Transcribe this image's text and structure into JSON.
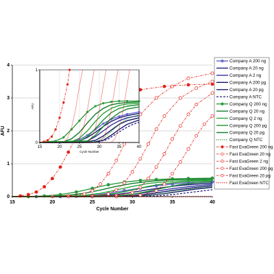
{
  "chart_data": [
    {
      "type": "line",
      "xlabel": "Cycle Number",
      "ylabel": "AFU",
      "xlim": [
        15,
        40
      ],
      "ylim": [
        0,
        4
      ],
      "x_ticks": [
        15,
        20,
        25,
        30,
        35,
        40
      ],
      "y_ticks": [
        0,
        1,
        2,
        3,
        4
      ],
      "grid": "horizontal",
      "legend": "right",
      "series": [
        {
          "name": "Company A 200 ng",
          "color": "#6a6acf",
          "style": "solid-marker",
          "x": [
            15,
            18,
            21,
            23,
            25,
            27,
            29,
            31,
            33,
            35,
            37,
            40
          ],
          "y": [
            0.0,
            0.0,
            0.0,
            0.01,
            0.04,
            0.1,
            0.18,
            0.26,
            0.33,
            0.38,
            0.42,
            0.45
          ]
        },
        {
          "name": "Company A 20 ng",
          "color": "#1c1c7a",
          "style": "solid",
          "x": [
            15,
            18,
            21,
            24,
            26,
            28,
            30,
            32,
            34,
            36,
            38,
            40
          ],
          "y": [
            0.0,
            0.0,
            0.0,
            0.0,
            0.02,
            0.06,
            0.13,
            0.21,
            0.28,
            0.34,
            0.38,
            0.41
          ]
        },
        {
          "name": "Company A 2 ng",
          "color": "#2f2f9e",
          "style": "solid",
          "x": [
            15,
            20,
            24,
            27,
            29,
            31,
            33,
            35,
            37,
            39,
            40
          ],
          "y": [
            0.0,
            0.0,
            0.0,
            0.01,
            0.04,
            0.1,
            0.17,
            0.24,
            0.3,
            0.35,
            0.37
          ]
        },
        {
          "name": "Company A 200 pg",
          "color": "#101060",
          "style": "solid",
          "x": [
            15,
            20,
            25,
            28,
            30,
            32,
            34,
            36,
            38,
            40
          ],
          "y": [
            0.0,
            0.0,
            0.0,
            0.01,
            0.03,
            0.08,
            0.15,
            0.22,
            0.28,
            0.33
          ]
        },
        {
          "name": "Company A 20 pg",
          "color": "#16166e",
          "style": "solid",
          "x": [
            15,
            20,
            25,
            30,
            32,
            34,
            36,
            38,
            40
          ],
          "y": [
            0.0,
            0.0,
            0.0,
            0.01,
            0.04,
            0.09,
            0.16,
            0.23,
            0.28
          ]
        },
        {
          "name": "Company A NTC",
          "color": "#1c1c7a",
          "style": "dashed",
          "x": [
            15,
            20,
            25,
            30,
            33,
            35,
            37,
            39,
            40
          ],
          "y": [
            0.0,
            0.0,
            0.0,
            0.0,
            0.02,
            0.06,
            0.12,
            0.18,
            0.21
          ]
        },
        {
          "name": "Company Q 200 ng",
          "color": "#2e9a3e",
          "style": "solid-marker",
          "x": [
            15,
            17,
            19,
            21,
            23,
            25,
            27,
            29,
            31,
            33,
            35,
            37,
            40
          ],
          "y": [
            0.0,
            0.0,
            0.02,
            0.06,
            0.14,
            0.25,
            0.36,
            0.44,
            0.49,
            0.52,
            0.54,
            0.55,
            0.56
          ]
        },
        {
          "name": "Company Q 20 ng",
          "color": "#0f7a2a",
          "style": "solid",
          "x": [
            15,
            18,
            20,
            22,
            24,
            26,
            28,
            30,
            32,
            34,
            36,
            38,
            40
          ],
          "y": [
            0.0,
            0.0,
            0.01,
            0.04,
            0.1,
            0.2,
            0.31,
            0.4,
            0.46,
            0.5,
            0.52,
            0.53,
            0.54
          ]
        },
        {
          "name": "Company Q 2 ng",
          "color": "#2aa53a",
          "style": "solid",
          "x": [
            15,
            20,
            22,
            24,
            26,
            28,
            30,
            32,
            34,
            36,
            38,
            40
          ],
          "y": [
            0.0,
            0.0,
            0.01,
            0.04,
            0.1,
            0.2,
            0.31,
            0.4,
            0.45,
            0.48,
            0.5,
            0.51
          ]
        },
        {
          "name": "Company Q 200 pg",
          "color": "#1b8f2f",
          "style": "solid",
          "x": [
            15,
            20,
            24,
            26,
            28,
            30,
            32,
            34,
            36,
            38,
            40
          ],
          "y": [
            0.0,
            0.0,
            0.01,
            0.04,
            0.1,
            0.2,
            0.31,
            0.39,
            0.44,
            0.47,
            0.48
          ]
        },
        {
          "name": "Company Q 20 pg",
          "color": "#17852c",
          "style": "solid",
          "x": [
            15,
            20,
            25,
            28,
            30,
            32,
            34,
            36,
            38,
            40
          ],
          "y": [
            0.0,
            0.0,
            0.0,
            0.02,
            0.07,
            0.16,
            0.27,
            0.36,
            0.42,
            0.45
          ]
        },
        {
          "name": "Company Q NTC",
          "color": "#2a9a38",
          "style": "dotted",
          "x": [
            15,
            20,
            25,
            30,
            32,
            34,
            36,
            38,
            40
          ],
          "y": [
            0.0,
            0.0,
            0.0,
            0.01,
            0.04,
            0.1,
            0.18,
            0.26,
            0.31
          ]
        },
        {
          "name": "Fast EvaGreen 200 ng",
          "color": "#e2231a",
          "style": "dashdot-marker",
          "x": [
            15,
            16,
            17,
            18,
            19,
            20,
            21,
            22,
            23,
            25,
            28,
            31,
            34,
            37,
            40
          ],
          "y": [
            0.0,
            0.02,
            0.06,
            0.14,
            0.3,
            0.55,
            0.9,
            1.35,
            1.85,
            2.55,
            3.05,
            3.25,
            3.35,
            3.4,
            3.42
          ]
        },
        {
          "name": "Fast EvaGreen 20 ng",
          "color": "#e2231a",
          "style": "dashdot-open",
          "x": [
            15,
            20,
            22,
            24,
            25,
            26,
            27,
            28,
            29,
            30,
            31,
            33,
            35,
            37,
            40
          ],
          "y": [
            0.0,
            0.0,
            0.02,
            0.08,
            0.18,
            0.38,
            0.7,
            1.1,
            1.6,
            2.1,
            2.5,
            3.0,
            3.35,
            3.6,
            3.75
          ]
        },
        {
          "name": "Fast EvaGreen 2 ng",
          "color": "#e2231a",
          "style": "dashdot-open",
          "x": [
            15,
            22,
            25,
            27,
            28,
            29,
            30,
            31,
            32,
            33,
            34,
            36,
            38,
            40
          ],
          "y": [
            0.0,
            0.0,
            0.02,
            0.08,
            0.2,
            0.42,
            0.75,
            1.15,
            1.6,
            2.05,
            2.45,
            3.0,
            3.3,
            3.5
          ]
        },
        {
          "name": "Fast EvaGreen 200 pg",
          "color": "#e2231a",
          "style": "dashdot-open",
          "x": [
            15,
            25,
            28,
            30,
            31,
            32,
            33,
            34,
            35,
            36,
            37,
            38,
            40
          ],
          "y": [
            0.0,
            0.0,
            0.03,
            0.12,
            0.28,
            0.55,
            0.9,
            1.3,
            1.75,
            2.15,
            2.5,
            2.8,
            3.15
          ]
        },
        {
          "name": "Fast EvaGreen 20 pg",
          "color": "#e2231a",
          "style": "dashdot-open",
          "x": [
            15,
            28,
            31,
            33,
            34,
            35,
            36,
            37,
            38,
            39,
            40
          ],
          "y": [
            0.0,
            0.0,
            0.04,
            0.18,
            0.38,
            0.7,
            1.05,
            1.45,
            1.85,
            2.2,
            2.45
          ]
        },
        {
          "name": "Fast EvaGreen NTC",
          "color": "#e2231a",
          "style": "dotted",
          "x": [
            15,
            40
          ],
          "y": [
            0.0,
            0.0
          ]
        }
      ]
    },
    {
      "type": "line",
      "role": "inset",
      "xlabel": "Cycle Number",
      "ylabel": "AFU",
      "xlim": [
        15,
        40
      ],
      "ylim": [
        0,
        1
      ],
      "x_ticks": [
        15,
        20,
        25,
        30,
        35,
        40
      ],
      "y_ticks": [
        0,
        1
      ],
      "series": [
        {
          "name": "Company A 200 ng",
          "color": "#6a6acf",
          "style": "solid-marker",
          "x": [
            15,
            20,
            23,
            25,
            27,
            29,
            31,
            33,
            35,
            37,
            40
          ],
          "y": [
            0.0,
            0.0,
            0.01,
            0.04,
            0.1,
            0.18,
            0.26,
            0.32,
            0.36,
            0.39,
            0.42
          ]
        },
        {
          "name": "Company A 20 ng",
          "color": "#1c1c7a",
          "style": "solid",
          "x": [
            15,
            22,
            25,
            27,
            29,
            31,
            33,
            35,
            37,
            40
          ],
          "y": [
            0.0,
            0.0,
            0.02,
            0.07,
            0.14,
            0.22,
            0.29,
            0.34,
            0.37,
            0.4
          ]
        },
        {
          "name": "Company A 2 ng",
          "color": "#2f2f9e",
          "style": "solid",
          "x": [
            15,
            24,
            27,
            29,
            31,
            33,
            35,
            37,
            40
          ],
          "y": [
            0.0,
            0.0,
            0.02,
            0.08,
            0.16,
            0.24,
            0.3,
            0.34,
            0.37
          ]
        },
        {
          "name": "Company A 200 pg",
          "color": "#101060",
          "style": "solid",
          "x": [
            15,
            26,
            29,
            31,
            33,
            35,
            37,
            40
          ],
          "y": [
            0.0,
            0.0,
            0.03,
            0.09,
            0.17,
            0.25,
            0.3,
            0.34
          ]
        },
        {
          "name": "Company A 20 pg",
          "color": "#16166e",
          "style": "solid",
          "x": [
            15,
            28,
            31,
            33,
            35,
            37,
            40
          ],
          "y": [
            0.0,
            0.0,
            0.03,
            0.1,
            0.18,
            0.25,
            0.31
          ]
        },
        {
          "name": "Company A NTC",
          "color": "#1c1c7a",
          "style": "dashed",
          "x": [
            15,
            29,
            32,
            34,
            36,
            38,
            40
          ],
          "y": [
            0.0,
            0.0,
            0.04,
            0.11,
            0.18,
            0.24,
            0.28
          ]
        },
        {
          "name": "Company Q 200 ng",
          "color": "#2e9a3e",
          "style": "solid-marker",
          "x": [
            15,
            19,
            21,
            23,
            25,
            27,
            29,
            31,
            33,
            35,
            37,
            40
          ],
          "y": [
            0.0,
            0.02,
            0.07,
            0.18,
            0.3,
            0.42,
            0.5,
            0.54,
            0.56,
            0.57,
            0.57,
            0.57
          ]
        },
        {
          "name": "Company Q 20 ng",
          "color": "#0f7a2a",
          "style": "solid",
          "x": [
            15,
            21,
            23,
            25,
            27,
            29,
            31,
            33,
            35,
            37,
            40
          ],
          "y": [
            0.0,
            0.01,
            0.05,
            0.14,
            0.27,
            0.39,
            0.47,
            0.52,
            0.54,
            0.55,
            0.56
          ]
        },
        {
          "name": "Company Q 2 ng",
          "color": "#2aa53a",
          "style": "solid",
          "x": [
            15,
            23,
            25,
            27,
            29,
            31,
            33,
            35,
            37,
            40
          ],
          "y": [
            0.0,
            0.01,
            0.06,
            0.16,
            0.29,
            0.4,
            0.47,
            0.51,
            0.53,
            0.54
          ]
        },
        {
          "name": "Company Q 200 pg",
          "color": "#1b8f2f",
          "style": "solid",
          "x": [
            15,
            25,
            27,
            29,
            31,
            33,
            35,
            37,
            40
          ],
          "y": [
            0.0,
            0.02,
            0.08,
            0.19,
            0.31,
            0.41,
            0.47,
            0.5,
            0.52
          ]
        },
        {
          "name": "Company Q 20 pg",
          "color": "#17852c",
          "style": "solid",
          "x": [
            15,
            27,
            29,
            31,
            33,
            35,
            37,
            40
          ],
          "y": [
            0.0,
            0.02,
            0.1,
            0.22,
            0.33,
            0.41,
            0.46,
            0.49
          ]
        },
        {
          "name": "Company Q NTC",
          "color": "#2a9a38",
          "style": "dotted",
          "x": [
            15,
            29,
            31,
            33,
            35,
            37,
            40
          ],
          "y": [
            0.0,
            0.01,
            0.06,
            0.15,
            0.25,
            0.33,
            0.38
          ]
        },
        {
          "name": "Fast EvaGreen 200 ng",
          "color": "#e2231a",
          "style": "dashdot-marker",
          "x": [
            15,
            16,
            17,
            18,
            19,
            20,
            21,
            22,
            22.5
          ],
          "y": [
            0.0,
            0.01,
            0.03,
            0.08,
            0.18,
            0.34,
            0.55,
            0.8,
            1.0
          ]
        },
        {
          "name": "Fast EvaGreen 20 ng",
          "color": "#e2231a",
          "style": "light",
          "x": [
            15,
            21,
            22,
            23,
            24,
            25,
            25.8
          ],
          "y": [
            0.0,
            0.0,
            0.06,
            0.2,
            0.45,
            0.78,
            1.0
          ]
        },
        {
          "name": "Fast EvaGreen 2 ng",
          "color": "#e2231a",
          "style": "light",
          "x": [
            15,
            24,
            25,
            26,
            27,
            28,
            28.7
          ],
          "y": [
            0.0,
            0.0,
            0.06,
            0.2,
            0.45,
            0.78,
            1.0
          ]
        },
        {
          "name": "Fast EvaGreen 200 pg",
          "color": "#e2231a",
          "style": "light",
          "x": [
            15,
            27,
            28,
            29,
            30,
            31,
            31.7
          ],
          "y": [
            0.0,
            0.0,
            0.06,
            0.2,
            0.45,
            0.78,
            1.0
          ]
        },
        {
          "name": "Fast EvaGreen 20 pg",
          "color": "#e2231a",
          "style": "light",
          "x": [
            15,
            30,
            31,
            32,
            33,
            34,
            34.7
          ],
          "y": [
            0.0,
            0.0,
            0.06,
            0.2,
            0.45,
            0.78,
            1.0
          ]
        },
        {
          "name": "Fast EvaGreen NTC",
          "color": "#e2231a",
          "style": "light",
          "x": [
            15,
            33,
            34,
            35,
            36,
            37,
            37.6
          ],
          "y": [
            0.0,
            0.0,
            0.06,
            0.2,
            0.45,
            0.78,
            1.0
          ]
        }
      ]
    }
  ]
}
